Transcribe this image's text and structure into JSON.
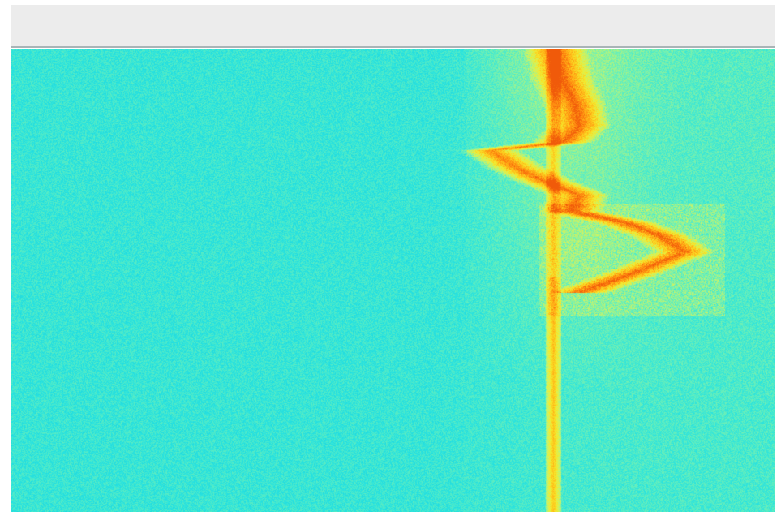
{
  "window": {
    "toolbar_text": ""
  },
  "waterfall": {
    "colormap": [
      "#00a6d8",
      "#11c6dc",
      "#28e3e0",
      "#6cf0b8",
      "#c8f46a",
      "#f5ea2c",
      "#ffbf1a",
      "#ff8a10",
      "#f05a0a"
    ],
    "background_color": "#1fd6d8",
    "signal_color": "#ffe83a",
    "peak_color": "#ff7a10"
  }
}
